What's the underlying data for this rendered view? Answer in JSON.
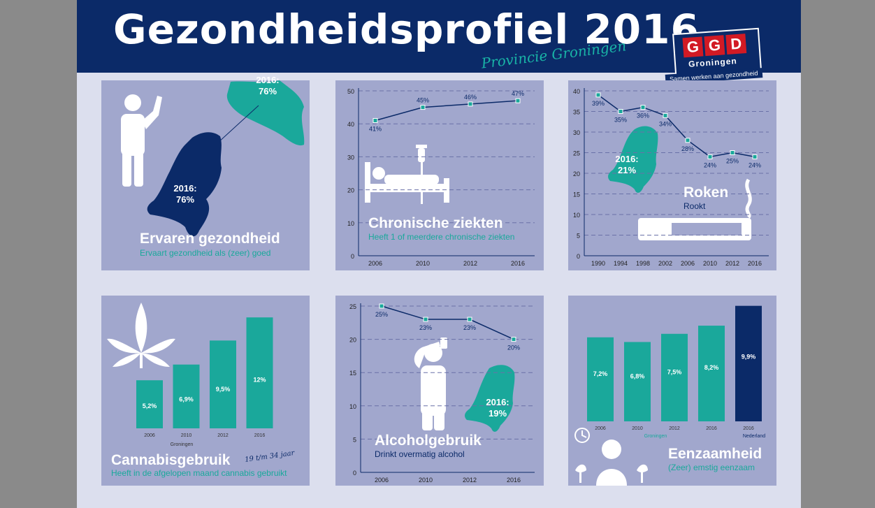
{
  "header": {
    "title": "Gezondheidsprofiel 2016",
    "subtitle": "Provincie Groningen"
  },
  "logo": {
    "letters": [
      "G",
      "G",
      "D"
    ],
    "name": "Groningen",
    "tagline": "Samen werken aan gezondheid"
  },
  "colors": {
    "navy": "#0b2a68",
    "teal": "#1aa89b",
    "panel": "#a1a7cd",
    "background": "#dcdfee"
  },
  "panels": {
    "ervaren": {
      "title": "Ervaren gezondheid",
      "subtitle": "Ervaart gezondheid als (zeer) goed",
      "groningen_label": "2016:\n76%",
      "nederland_label": "2016:\n76%",
      "icon": "person-waving-icon"
    },
    "chronisch": {
      "title": "Chronische ziekten",
      "subtitle": "Heeft 1 of meerdere chronische ziekten",
      "icon": "hospital-bed-icon"
    },
    "roken": {
      "title": "Roken",
      "subtitle": "Rookt",
      "nl_label": "2016:\n21%",
      "icon": "cigarette-icon"
    },
    "cannabis": {
      "title": "Cannabisgebruik",
      "handwritten": "19 t/m 34 jaar",
      "subtitle": "Heeft in de afgelopen maand cannabis gebruikt",
      "icon": "cannabis-leaf-icon"
    },
    "alcohol": {
      "title": "Alcoholgebruik",
      "subtitle": "Drinkt overmatig alcohol",
      "nl_label": "2016:\n19%",
      "icon": "person-drinking-icon"
    },
    "eenzaam": {
      "title": "Eenzaamheid",
      "subtitle": "(Zeer) emstig eenzaam",
      "icon": "lonely-person-icon"
    }
  },
  "chart_data": [
    {
      "id": "chronisch",
      "type": "line",
      "x": [
        "2006",
        "2010",
        "2012",
        "2016"
      ],
      "series": [
        {
          "values": [
            41,
            45,
            46,
            47
          ]
        }
      ],
      "value_labels": [
        "41%",
        "45%",
        "46%",
        "47%"
      ],
      "yticks": [
        0,
        10,
        20,
        30,
        40,
        50
      ],
      "ylim": [
        0,
        50
      ],
      "grid": true
    },
    {
      "id": "roken",
      "type": "line",
      "x": [
        "1990",
        "1994",
        "1998",
        "2002",
        "2006",
        "2010",
        "2012",
        "2016"
      ],
      "series": [
        {
          "values": [
            39,
            35,
            36,
            34,
            28,
            24,
            25,
            24
          ]
        }
      ],
      "value_labels": [
        "39%",
        "35%",
        "36%",
        "34%",
        "28%",
        "24%",
        "25%",
        "24%"
      ],
      "yticks": [
        0,
        5,
        10,
        15,
        20,
        25,
        30,
        35,
        40
      ],
      "ylim": [
        0,
        40
      ],
      "grid": true
    },
    {
      "id": "cannabis",
      "type": "bar",
      "categories": [
        "2006",
        "2010",
        "2012",
        "2016"
      ],
      "values": [
        5.2,
        6.9,
        9.5,
        12
      ],
      "value_labels": [
        "5,2%",
        "6,9%",
        "9,5%",
        "12%"
      ],
      "group_label": "Groningen",
      "ylim": [
        0,
        13
      ]
    },
    {
      "id": "alcohol",
      "type": "line",
      "x": [
        "2006",
        "2010",
        "2012",
        "2016"
      ],
      "series": [
        {
          "values": [
            25,
            23,
            23,
            20
          ]
        }
      ],
      "value_labels": [
        "25%",
        "23%",
        "23%",
        "20%"
      ],
      "yticks": [
        0,
        5,
        10,
        15,
        20,
        25
      ],
      "ylim": [
        0,
        25
      ],
      "grid": true
    },
    {
      "id": "eenzaam",
      "type": "bar",
      "categories": [
        "2006",
        "2010",
        "2012",
        "2016",
        "2016"
      ],
      "values": [
        7.2,
        6.8,
        7.5,
        8.2,
        9.9
      ],
      "value_labels": [
        "7,2%",
        "6,8%",
        "7,5%",
        "8,2%",
        "9,9%"
      ],
      "group_labels": [
        "Groningen",
        "Nederland"
      ],
      "highlight_index": 4,
      "ylim": [
        0,
        10
      ]
    }
  ]
}
